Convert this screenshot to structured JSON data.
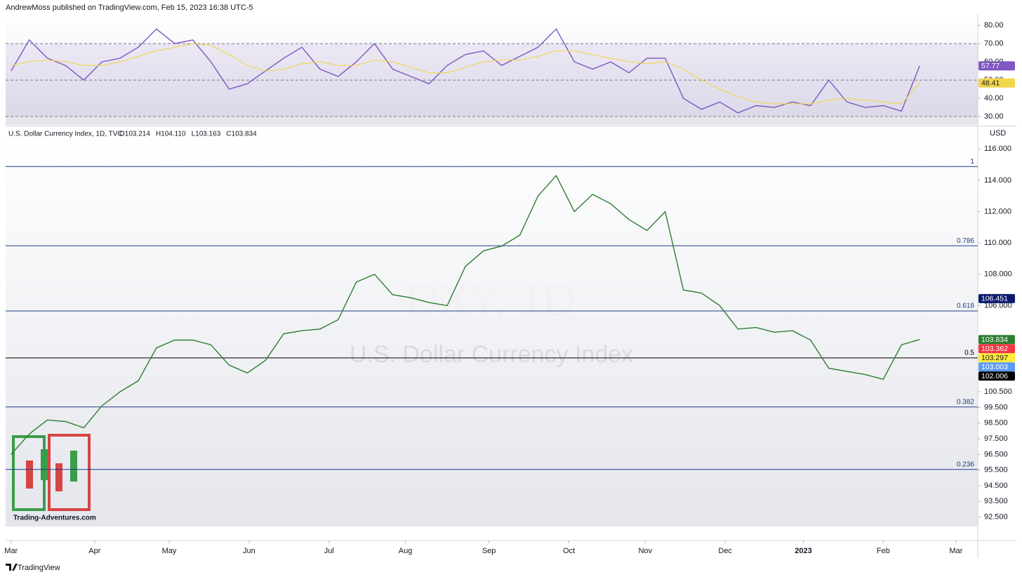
{
  "header": {
    "attribution": "AndrewMoss published on TradingView.com, Feb 15, 2023 16:38 UTC-5"
  },
  "chart_data": [
    {
      "type": "line",
      "xlim": [
        -0.3,
        53.2
      ],
      "ylim": [
        25.4,
        86.2
      ],
      "yticks": [
        {
          "value": 30,
          "label": "30.00"
        },
        {
          "value": 40,
          "label": "40.00"
        },
        {
          "value": 50,
          "label": "50.00"
        },
        {
          "value": 60,
          "label": "60.00"
        },
        {
          "value": 70,
          "label": "70.00"
        },
        {
          "value": 80,
          "label": "80.00"
        }
      ],
      "bands": [
        30,
        50,
        70
      ],
      "series": [
        {
          "color": "#7e57c2",
          "values": [
            55,
            72,
            62,
            58,
            50,
            60,
            62,
            68,
            78,
            70,
            72,
            60,
            45,
            48,
            55,
            62,
            68,
            56,
            52,
            60,
            70,
            56,
            52,
            48,
            58,
            64,
            66,
            58,
            63,
            68,
            78,
            60,
            56,
            60,
            54,
            62,
            62,
            40,
            34,
            38,
            32,
            36,
            35,
            38,
            36,
            50,
            38,
            35,
            36,
            33,
            57.77
          ]
        },
        {
          "color": "#f2d64b",
          "values": [
            58,
            60,
            61,
            60,
            58,
            58,
            60,
            63,
            66,
            68,
            70,
            69,
            64,
            58,
            55,
            56,
            59,
            60,
            58,
            58,
            61,
            60,
            57,
            54,
            54,
            57,
            60,
            61,
            61,
            63,
            66,
            66,
            64,
            62,
            60,
            59,
            60,
            56,
            50,
            45,
            41,
            38,
            37,
            37,
            37,
            39,
            40,
            39,
            38,
            37,
            48.41
          ]
        }
      ]
    },
    {
      "type": "line",
      "title": "U.S. Dollar Currency Index, 1D, TVC",
      "ohlc": [
        "O103.214",
        "H104.110",
        "L103.163",
        "C103.834"
      ],
      "watermark": "DXY, 1D",
      "watermark_subtitle": "U.S. Dollar Currency Index",
      "currency": "USD",
      "xlim": [
        -0.3,
        53.2
      ],
      "ylim": [
        91.9,
        117.4
      ],
      "xticks": [
        {
          "value": 0,
          "label": "Mar"
        },
        {
          "value": 4.6,
          "label": "Apr"
        },
        {
          "value": 8.7,
          "label": "May"
        },
        {
          "value": 13.1,
          "label": "Jun"
        },
        {
          "value": 17.5,
          "label": "Jul"
        },
        {
          "value": 21.7,
          "label": "Aug"
        },
        {
          "value": 26.3,
          "label": "Sep"
        },
        {
          "value": 30.7,
          "label": "Oct"
        },
        {
          "value": 34.9,
          "label": "Nov"
        },
        {
          "value": 39.3,
          "label": "Dec"
        },
        {
          "value": 43.6,
          "label": "2023"
        },
        {
          "value": 48.0,
          "label": "Feb"
        },
        {
          "value": 52.0,
          "label": "Mar"
        }
      ],
      "yticks": [
        {
          "value": 92.5,
          "label": "92.500"
        },
        {
          "value": 93.5,
          "label": "93.500"
        },
        {
          "value": 94.5,
          "label": "94.500"
        },
        {
          "value": 95.5,
          "label": "95.500"
        },
        {
          "value": 96.5,
          "label": "96.500"
        },
        {
          "value": 97.5,
          "label": "97.500"
        },
        {
          "value": 98.5,
          "label": "98.500"
        },
        {
          "value": 99.5,
          "label": "99.500"
        },
        {
          "value": 100.5,
          "label": "100.500"
        },
        {
          "value": 106,
          "label": "106.000"
        },
        {
          "value": 108,
          "label": "108.000"
        },
        {
          "value": 110,
          "label": "110.000"
        },
        {
          "value": 112,
          "label": "112.000"
        },
        {
          "value": 114,
          "label": "114.000"
        },
        {
          "value": 116,
          "label": "116.000"
        }
      ],
      "series": [
        {
          "color": "#2e7d32",
          "values": [
            96.5,
            97.8,
            98.7,
            98.6,
            98.2,
            99.6,
            100.5,
            101.2,
            103.3,
            103.8,
            103.8,
            103.5,
            102.2,
            101.7,
            102.5,
            104.2,
            104.4,
            104.5,
            105.1,
            107.5,
            108.0,
            106.7,
            106.5,
            106.2,
            106.0,
            108.5,
            109.5,
            109.8,
            110.5,
            113.0,
            114.3,
            112.0,
            113.1,
            112.5,
            111.5,
            110.8,
            112.0,
            107.0,
            106.8,
            106.0,
            104.5,
            104.6,
            104.3,
            104.4,
            103.8,
            102.0,
            101.8,
            101.6,
            101.3,
            103.5,
            103.834
          ]
        }
      ],
      "fib_levels": [
        {
          "value": 114.88,
          "label": "1",
          "color": "#1e3a8a"
        },
        {
          "value": 109.82,
          "label": "0.786",
          "color": "#1e3a8a"
        },
        {
          "value": 105.66,
          "label": "0.618",
          "color": "#1e3a8a"
        },
        {
          "value": 102.66,
          "label": "0.5",
          "color": "#000000"
        },
        {
          "value": 99.53,
          "label": "0.382",
          "color": "#1e3a8a"
        },
        {
          "value": 95.54,
          "label": "0.236",
          "color": "#1e3a8a"
        }
      ],
      "price_labels": [
        {
          "value": 106.451,
          "color": "#0d1b6e"
        },
        {
          "value": 103.362,
          "color": "#f23645"
        },
        {
          "value": 103.297,
          "color": "#ffeb3b"
        },
        {
          "value": 103.003,
          "color": "#5b9cf6"
        },
        {
          "value": 102.006,
          "color": "#000000"
        }
      ]
    }
  ],
  "footer": {
    "brand": "TradingView",
    "site": "Trading-Adventures.com"
  }
}
